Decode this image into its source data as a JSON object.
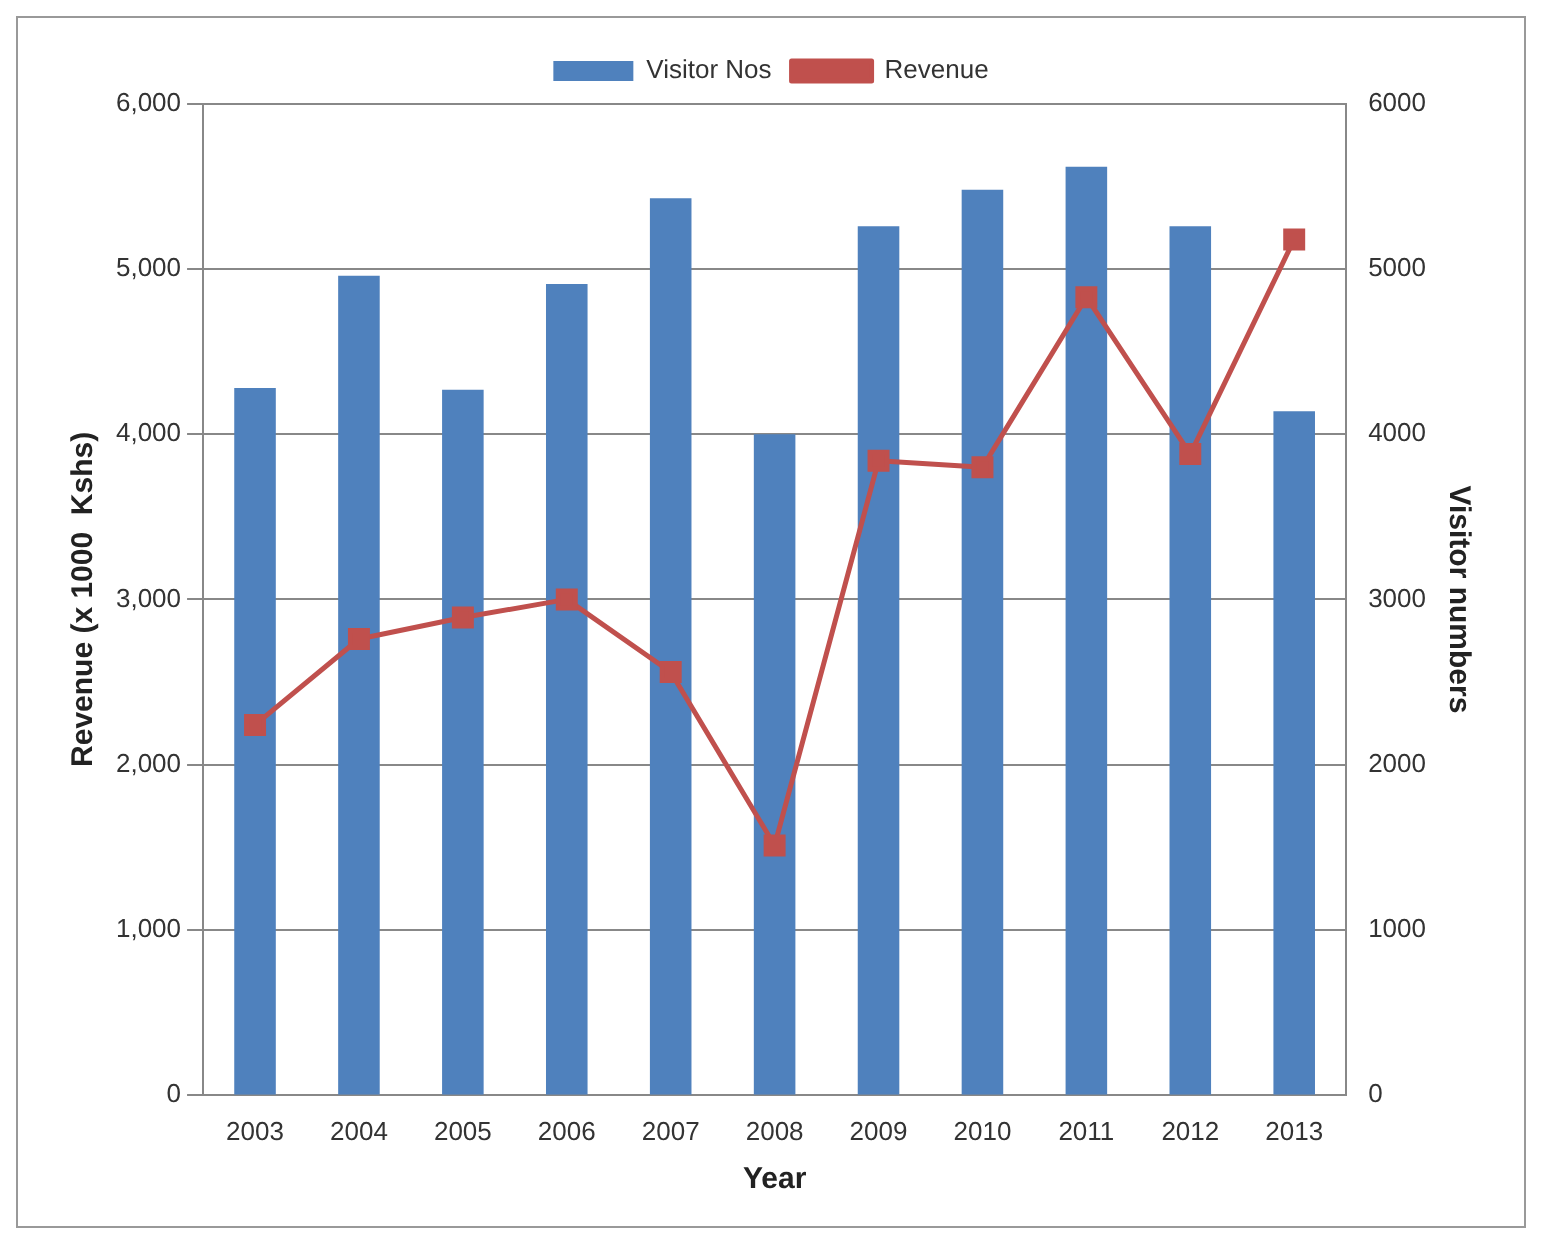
{
  "chart_data": {
    "type": "bar",
    "categories": [
      "2003",
      "2004",
      "2005",
      "2006",
      "2007",
      "2008",
      "2009",
      "2010",
      "2011",
      "2012",
      "2013"
    ],
    "xlabel": "Year",
    "ylabel": "Revenue (x 1000  Kshs)",
    "y2label": "Visitor numbers",
    "series": [
      {
        "name": "Visitor Nos",
        "axis": "y2",
        "color": "#4f81bd",
        "values": [
          4280,
          4960,
          4270,
          4910,
          5430,
          4000,
          5260,
          5480,
          5620,
          5260,
          4140
        ]
      },
      {
        "name": "Revenue",
        "type": "line",
        "axis": "y",
        "color": "#c0504d",
        "marker": "square",
        "values": [
          2240,
          2760,
          2890,
          3000,
          2560,
          1510,
          3840,
          3800,
          4830,
          3880,
          5180
        ]
      }
    ],
    "ylim": [
      0,
      6000
    ],
    "yticks": [
      0,
      {
        "value": 1000,
        "label": "1,000"
      },
      {
        "value": 2000,
        "label": "2,000"
      },
      {
        "value": 3000,
        "label": "3,000"
      },
      {
        "value": 4000,
        "label": "4,000"
      },
      {
        "value": 5000,
        "label": "5,000"
      },
      {
        "value": 6000,
        "label": "6,000"
      }
    ],
    "y2lim": [
      0,
      6000
    ],
    "y2ticks": [
      0,
      1000,
      2000,
      3000,
      4000,
      5000,
      6000
    ],
    "grid": "y",
    "legend": "top"
  }
}
